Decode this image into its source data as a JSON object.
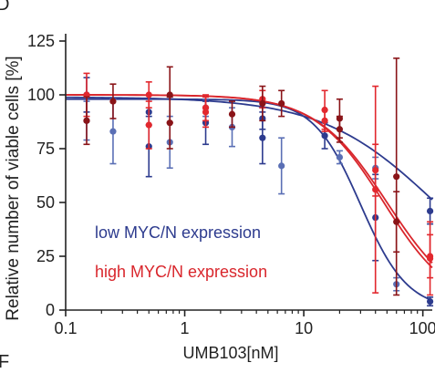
{
  "corner_letters": {
    "top": "D",
    "bottom": "F"
  },
  "chart_data": {
    "type": "scatter",
    "title": "",
    "xlabel": "UMB103[nM]",
    "ylabel": "Relative number of viable cells [%]",
    "xscale": "log",
    "xlim": [
      0.1,
      120
    ],
    "ylim": [
      0,
      125
    ],
    "x_ticks": [
      0.1,
      1,
      10,
      100
    ],
    "x_tick_labels": [
      "0.1",
      "1",
      "10",
      "100"
    ],
    "y_ticks": [
      0,
      25,
      50,
      75,
      100,
      125
    ],
    "y_tick_labels": [
      "0",
      "25",
      "50",
      "75",
      "100",
      "125"
    ],
    "grid": false,
    "legend": {
      "placement": "bottom-left",
      "style": "colored-text"
    },
    "series": [
      {
        "name": "low MYC/N expression",
        "color": "#2d3b8e",
        "point_colors": [
          "#2d3b8e",
          "#5a6fb5"
        ],
        "points": [
          {
            "x": 0.15,
            "y": 100,
            "err": 8
          },
          {
            "x": 0.25,
            "y": 83,
            "err": 15
          },
          {
            "x": 0.5,
            "y": 76,
            "err": 14
          },
          {
            "x": 0.75,
            "y": 78,
            "err": 12
          },
          {
            "x": 1.5,
            "y": 87,
            "err": 10
          },
          {
            "x": 2.5,
            "y": 85,
            "err": 9
          },
          {
            "x": 4.5,
            "y": 80,
            "err": 12
          },
          {
            "x": 6.5,
            "y": 67,
            "err": 13
          },
          {
            "x": 15,
            "y": 81,
            "err": 6
          },
          {
            "x": 20,
            "y": 71,
            "err": 3
          },
          {
            "x": 40,
            "y": 43,
            "err": 20
          },
          {
            "x": 60,
            "y": 12,
            "err": 3
          },
          {
            "x": 115,
            "y": 4,
            "err": 2
          },
          {
            "x": 0.15,
            "y": 88,
            "err": 9
          },
          {
            "x": 0.5,
            "y": 92,
            "err": 6
          },
          {
            "x": 1.5,
            "y": 94,
            "err": 4
          },
          {
            "x": 4.5,
            "y": 89,
            "err": 5
          },
          {
            "x": 40,
            "y": 66,
            "err": 5
          },
          {
            "x": 115,
            "y": 46,
            "err": 6
          }
        ],
        "fits": [
          {
            "top": 98,
            "bottom": 0,
            "ec50": 30,
            "hill": 2.2
          },
          {
            "top": 99,
            "bottom": 0,
            "ec50": 130,
            "hill": 0.9
          }
        ]
      },
      {
        "name": "high MYC/N expression",
        "color": "#d9262c",
        "point_colors": [
          "#e2282e",
          "#8a1418"
        ],
        "points": [
          {
            "x": 0.15,
            "y": 100,
            "err": 10
          },
          {
            "x": 0.25,
            "y": 97,
            "err": 8
          },
          {
            "x": 0.5,
            "y": 86,
            "err": 11
          },
          {
            "x": 0.75,
            "y": 87,
            "err": 12
          },
          {
            "x": 1.5,
            "y": 94,
            "err": 6
          },
          {
            "x": 2.5,
            "y": 91,
            "err": 6
          },
          {
            "x": 4.5,
            "y": 98,
            "err": 4
          },
          {
            "x": 6.5,
            "y": 96,
            "err": 6
          },
          {
            "x": 15,
            "y": 88,
            "err": 5
          },
          {
            "x": 20,
            "y": 84,
            "err": 6
          },
          {
            "x": 40,
            "y": 65,
            "err": 12
          },
          {
            "x": 60,
            "y": 41,
            "err": 14
          },
          {
            "x": 115,
            "y": 25,
            "err": 10
          },
          {
            "x": 0.15,
            "y": 88,
            "err": 11
          },
          {
            "x": 0.5,
            "y": 100,
            "err": 6
          },
          {
            "x": 0.75,
            "y": 100,
            "err": 13
          },
          {
            "x": 1.5,
            "y": 92,
            "err": 7
          },
          {
            "x": 4.5,
            "y": 96,
            "err": 8
          },
          {
            "x": 15,
            "y": 93,
            "err": 9
          },
          {
            "x": 20,
            "y": 89,
            "err": 9
          },
          {
            "x": 40,
            "y": 56,
            "err": 48
          },
          {
            "x": 60,
            "y": 62,
            "err": 55
          },
          {
            "x": 115,
            "y": 24,
            "err": 17
          }
        ],
        "fits": [
          {
            "top": 100,
            "bottom": 0,
            "ec50": 47,
            "hill": 1.5
          },
          {
            "top": 100,
            "bottom": 0,
            "ec50": 50,
            "hill": 1.45
          }
        ]
      }
    ]
  }
}
